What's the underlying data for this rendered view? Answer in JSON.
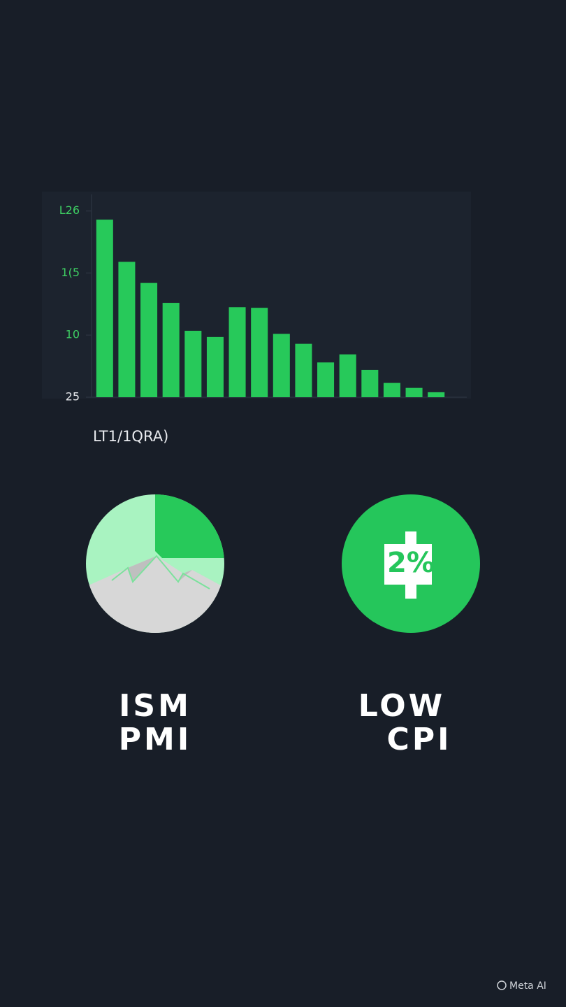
{
  "chart_data": {
    "type": "bar",
    "categories": [
      null,
      null,
      null,
      null,
      null,
      null,
      null,
      null,
      null,
      null,
      null,
      null,
      null,
      null,
      null,
      null
    ],
    "values": [
      2.86,
      2.18,
      1.84,
      1.52,
      1.07,
      0.97,
      1.45,
      1.44,
      1.02,
      0.86,
      0.56,
      0.69,
      0.44,
      0.23,
      0.15,
      0.08
    ],
    "color": "#27c95a",
    "ylim": [
      0,
      3.3
    ],
    "yticks": [
      {
        "value": 0,
        "label": "25"
      },
      {
        "value": 1,
        "label": "10"
      },
      {
        "value": 2,
        "label": "1(5"
      },
      {
        "value": 3,
        "label": "L26"
      }
    ],
    "xlabel": "LT1/1QRA)"
  },
  "icons": [
    {
      "label_lines": [
        "ISM",
        "PMI"
      ]
    },
    {
      "badge": "2%",
      "label_lines": [
        "LOW",
        "CPI"
      ]
    }
  ],
  "watermark": "Meta AI"
}
